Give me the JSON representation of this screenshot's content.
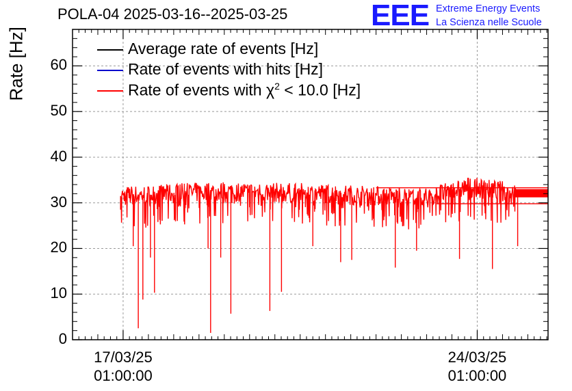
{
  "header": {
    "title": "POLA-04 2025-03-16--2025-03-25",
    "logo": "EEE",
    "logo_line1": "Extreme Energy Events",
    "logo_line2": "La Scienza nelle Scuole"
  },
  "colors": {
    "average": "#000000",
    "hits": "#0000cc",
    "chi2": "#ff0000",
    "logo": "#1a1aff"
  },
  "chart_data": {
    "type": "line",
    "title": "POLA-04 2025-03-16--2025-03-25",
    "ylabel": "Rate [Hz]",
    "xlabel": "",
    "ylim": [
      0,
      68
    ],
    "yticks": [
      0,
      10,
      20,
      30,
      40,
      50,
      60
    ],
    "ytick_labels": [
      "0",
      "10",
      "20",
      "30",
      "40",
      "50",
      "60"
    ],
    "xlim_days": [
      0,
      9.4
    ],
    "xticks": [
      {
        "day": 1.0,
        "label_date": "17/03/25",
        "label_time": "01:00:00"
      },
      {
        "day": 8.0,
        "label_date": "24/03/25",
        "label_time": "01:00:00"
      }
    ],
    "grid": true,
    "legend_position": "top-left",
    "legend": [
      {
        "name": "Average rate of events [Hz]",
        "key": "average"
      },
      {
        "name": "Rate of events with hits [Hz]",
        "key": "hits"
      },
      {
        "name_prefix": "Rate of events with ",
        "chi": "χ",
        "sup": "2",
        "name_suffix": " < 10.0 [Hz]",
        "key": "chi2"
      }
    ],
    "series": [
      {
        "name": "Rate of events with χ² < 10.0 [Hz]",
        "data_start_day": 0.95,
        "data_end_day": 9.4,
        "baseline": [
          {
            "day": 0.95,
            "value": 31.5
          },
          {
            "day": 3.0,
            "value": 32.5
          },
          {
            "day": 5.0,
            "value": 32.0
          },
          {
            "day": 7.0,
            "value": 31.0
          },
          {
            "day": 7.8,
            "value": 33.5
          },
          {
            "day": 9.0,
            "value": 32.0
          },
          {
            "day": 9.4,
            "value": 31.5
          }
        ],
        "band_halfwidth": 2.2,
        "dips": [
          {
            "day": 0.95,
            "value": 28.5
          },
          {
            "day": 1.3,
            "value": 2.5
          },
          {
            "day": 1.39,
            "value": 8.8
          },
          {
            "day": 1.54,
            "value": 18.0
          },
          {
            "day": 1.62,
            "value": 10.3
          },
          {
            "day": 1.2,
            "value": 20.5
          },
          {
            "day": 2.73,
            "value": 1.5
          },
          {
            "day": 2.68,
            "value": 20.0
          },
          {
            "day": 2.93,
            "value": 18.0
          },
          {
            "day": 3.13,
            "value": 5.7
          },
          {
            "day": 3.9,
            "value": 6.3
          },
          {
            "day": 4.13,
            "value": 10.5
          },
          {
            "day": 4.75,
            "value": 20.5
          },
          {
            "day": 5.3,
            "value": 17.0
          },
          {
            "day": 5.52,
            "value": 17.5
          },
          {
            "day": 6.38,
            "value": 15.8
          },
          {
            "day": 6.8,
            "value": 19.5
          },
          {
            "day": 7.65,
            "value": 17.7
          },
          {
            "day": 8.3,
            "value": 15.5
          },
          {
            "day": 8.8,
            "value": 20.5
          }
        ]
      }
    ]
  }
}
